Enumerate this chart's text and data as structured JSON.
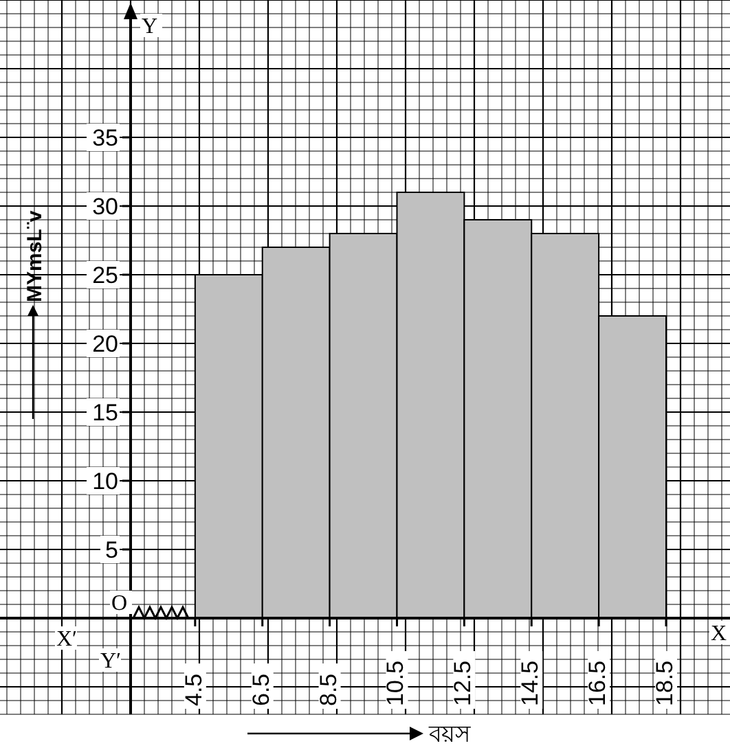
{
  "chart_data": {
    "type": "histogram",
    "xlabel": "বয়স",
    "ylabel": "MYmsL¨v",
    "bins": [
      4.5,
      6.5,
      8.5,
      10.5,
      12.5,
      14.5,
      16.5,
      18.5
    ],
    "values": [
      25,
      27,
      28,
      31,
      29,
      28,
      22
    ],
    "color": "#c0c0c0",
    "xlim": [
      -1.3,
      20.4
    ],
    "ylim": [
      -7,
      45
    ],
    "xticks": [
      4.5,
      6.5,
      8.5,
      10.5,
      12.5,
      14.5,
      16.5,
      18.5
    ],
    "yticks": [
      5,
      10,
      15,
      20,
      25,
      30,
      35
    ],
    "grid": true,
    "annotations": [
      "O",
      "X",
      "X′",
      "Y",
      "Y′"
    ]
  }
}
